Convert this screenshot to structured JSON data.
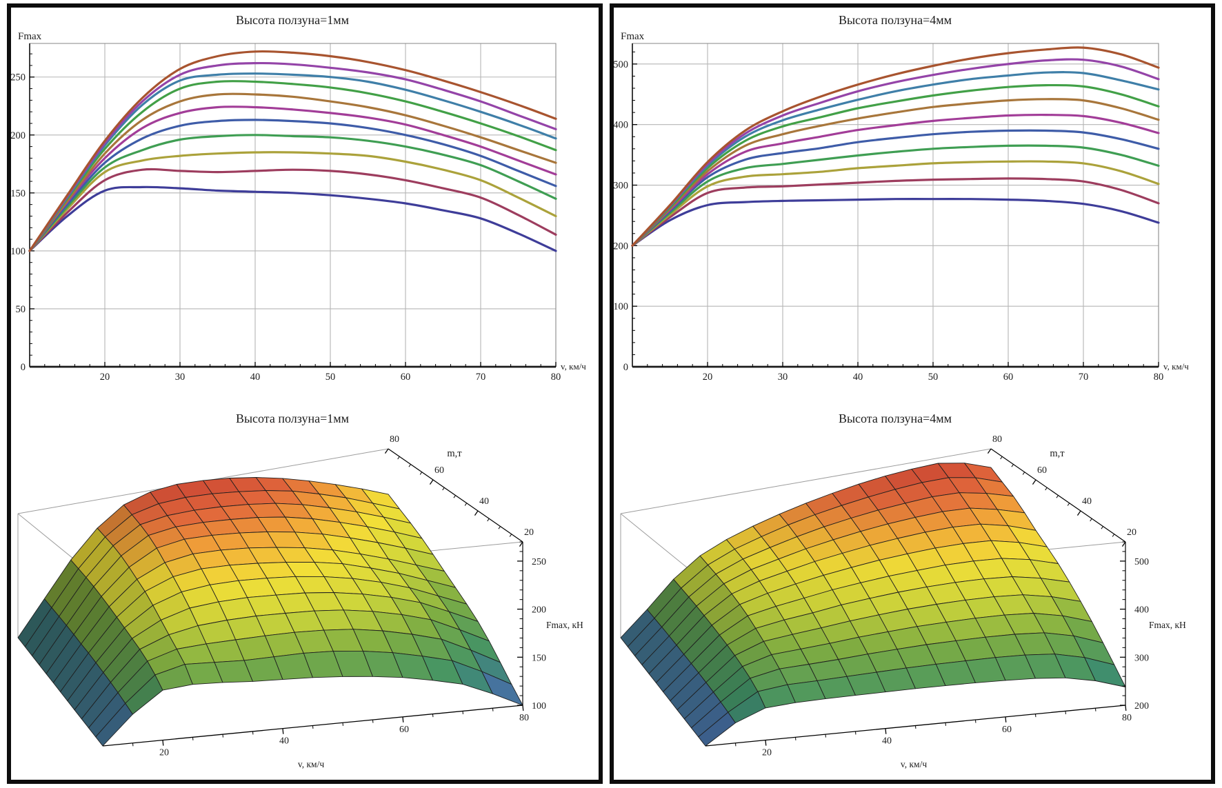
{
  "figure": {
    "background": "#ffffff",
    "panel_border_color": "#0d0d0d",
    "grid_color": "#b5b5b5",
    "frame_color": "#8f8f8f",
    "axis_color": "#1a1a1a",
    "box_line_color": "#9c9c9c",
    "mesh_line_color": "#1f1f1f"
  },
  "chart_data": [
    {
      "id": "line_1mm",
      "type": "line",
      "title": "Высота ползуна=1мм",
      "xlabel": "v, км/ч",
      "ylabel": "Fmax",
      "xlim": [
        10,
        80
      ],
      "ylim": [
        0,
        279
      ],
      "x_ticks": [
        20,
        30,
        40,
        50,
        60,
        70,
        80
      ],
      "x_minor_step": 2,
      "y_ticks": [
        0,
        50,
        100,
        150,
        200,
        250
      ],
      "y_minor_step": 10,
      "grid": true,
      "legend": "none",
      "x": [
        10,
        15,
        20,
        25,
        30,
        35,
        40,
        45,
        50,
        55,
        60,
        65,
        70,
        75,
        80
      ],
      "series": [
        {
          "name": "curve-01",
          "color": "#3E3D99",
          "values": [
            100,
            130,
            152,
            155,
            154,
            152,
            151,
            150,
            148,
            145,
            141,
            135,
            128,
            115,
            100
          ]
        },
        {
          "name": "curve-02",
          "color": "#9D3D5E",
          "values": [
            100,
            133,
            161,
            170,
            169,
            168,
            169,
            170,
            169,
            166,
            161,
            154,
            146,
            131,
            114
          ]
        },
        {
          "name": "curve-03",
          "color": "#ABA23B",
          "values": [
            100,
            136,
            168,
            178,
            182,
            184,
            185,
            185,
            184,
            182,
            177,
            170,
            161,
            146,
            130
          ]
        },
        {
          "name": "curve-04",
          "color": "#3F9E53",
          "values": [
            100,
            138,
            172,
            187,
            196,
            199,
            200,
            199,
            198,
            195,
            190,
            183,
            174,
            160,
            145
          ]
        },
        {
          "name": "curve-05",
          "color": "#3E5CA8",
          "values": [
            100,
            140,
            176,
            197,
            208,
            212,
            213,
            212,
            210,
            206,
            200,
            192,
            182,
            169,
            156
          ]
        },
        {
          "name": "curve-06",
          "color": "#A23D98",
          "values": [
            100,
            142,
            180,
            206,
            219,
            224,
            224,
            222,
            219,
            215,
            209,
            200,
            190,
            178,
            166
          ]
        },
        {
          "name": "curve-07",
          "color": "#A8763B",
          "values": [
            100,
            143,
            184,
            213,
            229,
            235,
            235,
            233,
            229,
            224,
            217,
            208,
            198,
            187,
            176
          ]
        },
        {
          "name": "curve-08",
          "color": "#42A047",
          "values": [
            100,
            145,
            188,
            220,
            240,
            246,
            246,
            244,
            241,
            236,
            229,
            220,
            210,
            199,
            187
          ]
        },
        {
          "name": "curve-09",
          "color": "#3F7FA8",
          "values": [
            100,
            146,
            191,
            226,
            247,
            252,
            253,
            252,
            250,
            246,
            239,
            230,
            220,
            209,
            197
          ]
        },
        {
          "name": "curve-10",
          "color": "#9444A8",
          "values": [
            100,
            147,
            193,
            229,
            252,
            260,
            262,
            261,
            258,
            254,
            248,
            239,
            229,
            217,
            205
          ]
        },
        {
          "name": "curve-11",
          "color": "#A8542F",
          "values": [
            100,
            148,
            195,
            232,
            257,
            268,
            272,
            271,
            268,
            263,
            256,
            247,
            237,
            226,
            214
          ]
        }
      ]
    },
    {
      "id": "line_4mm",
      "type": "line",
      "title": "Высота ползуна=4мм",
      "xlabel": "v, км/ч",
      "ylabel": "Fmax",
      "xlim": [
        10,
        80
      ],
      "ylim": [
        0,
        534
      ],
      "x_ticks": [
        20,
        30,
        40,
        50,
        60,
        70,
        80
      ],
      "x_minor_step": 2,
      "y_ticks": [
        0,
        100,
        200,
        300,
        400,
        500
      ],
      "y_minor_step": 20,
      "grid": true,
      "legend": "none",
      "x": [
        10,
        15,
        20,
        25,
        30,
        35,
        40,
        45,
        50,
        55,
        60,
        65,
        70,
        75,
        80
      ],
      "series": [
        {
          "name": "curve-01",
          "color": "#3E3D99",
          "values": [
            200,
            242,
            267,
            272,
            274,
            275,
            276,
            277,
            277,
            277,
            276,
            274,
            269,
            257,
            238
          ]
        },
        {
          "name": "curve-02",
          "color": "#9D3D5E",
          "values": [
            200,
            247,
            287,
            296,
            298,
            301,
            304,
            307,
            309,
            310,
            311,
            310,
            306,
            292,
            270
          ]
        },
        {
          "name": "curve-03",
          "color": "#ABA23B",
          "values": [
            200,
            251,
            298,
            314,
            318,
            322,
            328,
            332,
            336,
            338,
            339,
            339,
            336,
            323,
            302
          ]
        },
        {
          "name": "curve-04",
          "color": "#3F9E53",
          "values": [
            200,
            254,
            306,
            328,
            335,
            342,
            349,
            355,
            360,
            363,
            365,
            365,
            362,
            350,
            332
          ]
        },
        {
          "name": "curve-05",
          "color": "#3E5CA8",
          "values": [
            200,
            257,
            313,
            342,
            353,
            361,
            371,
            378,
            384,
            388,
            390,
            390,
            387,
            376,
            360
          ]
        },
        {
          "name": "curve-06",
          "color": "#A23D98",
          "values": [
            200,
            259,
            318,
            355,
            369,
            380,
            391,
            399,
            406,
            411,
            415,
            416,
            414,
            403,
            386
          ]
        },
        {
          "name": "curve-07",
          "color": "#A8763B",
          "values": [
            200,
            261,
            323,
            365,
            384,
            398,
            410,
            420,
            429,
            435,
            440,
            442,
            440,
            427,
            408
          ]
        },
        {
          "name": "curve-08",
          "color": "#42A047",
          "values": [
            200,
            263,
            328,
            373,
            397,
            412,
            427,
            438,
            448,
            456,
            462,
            465,
            463,
            450,
            430
          ]
        },
        {
          "name": "curve-09",
          "color": "#3F7FA8",
          "values": [
            200,
            265,
            332,
            380,
            407,
            425,
            441,
            455,
            466,
            475,
            481,
            486,
            485,
            473,
            458
          ]
        },
        {
          "name": "curve-10",
          "color": "#9444A8",
          "values": [
            200,
            266,
            335,
            385,
            415,
            436,
            455,
            470,
            482,
            492,
            500,
            506,
            507,
            496,
            475
          ]
        },
        {
          "name": "curve-11",
          "color": "#A8542F",
          "values": [
            200,
            267,
            338,
            390,
            422,
            446,
            466,
            483,
            497,
            509,
            518,
            524,
            527,
            516,
            494
          ]
        }
      ]
    },
    {
      "id": "surface_1mm",
      "type": "surface",
      "title": "Высота ползуна=1мм",
      "xlabel": "v, км/ч",
      "ylabel": "m,т",
      "zlabel": "Fmax, кН",
      "v_range": [
        10,
        80
      ],
      "m_range": [
        20,
        80
      ],
      "zlim": [
        100,
        270
      ],
      "v_ticks": [
        20,
        40,
        60,
        80
      ],
      "v_minor_step": 5,
      "m_ticks": [
        20,
        40,
        60,
        80
      ],
      "m_minor_step": 5,
      "z_ticks": [
        100,
        150,
        200,
        250
      ],
      "z_minor_step": 10,
      "color_range": [
        100,
        272
      ],
      "surface_from": "line_1mm",
      "colormap": "rainbow-blue-green-yellow-red"
    },
    {
      "id": "surface_4mm",
      "type": "surface",
      "title": "Высота ползуна=4мм",
      "xlabel": "v, км/ч",
      "ylabel": "m,т",
      "zlabel": "Fmax, кН",
      "v_range": [
        10,
        80
      ],
      "m_range": [
        20,
        80
      ],
      "zlim": [
        200,
        540
      ],
      "v_ticks": [
        20,
        40,
        60,
        80
      ],
      "v_minor_step": 5,
      "m_ticks": [
        20,
        40,
        60,
        80
      ],
      "m_minor_step": 5,
      "z_ticks": [
        200,
        300,
        400,
        500
      ],
      "z_minor_step": 20,
      "color_range": [
        200,
        527
      ],
      "surface_from": "line_4mm",
      "colormap": "rainbow-blue-green-yellow-red"
    }
  ]
}
